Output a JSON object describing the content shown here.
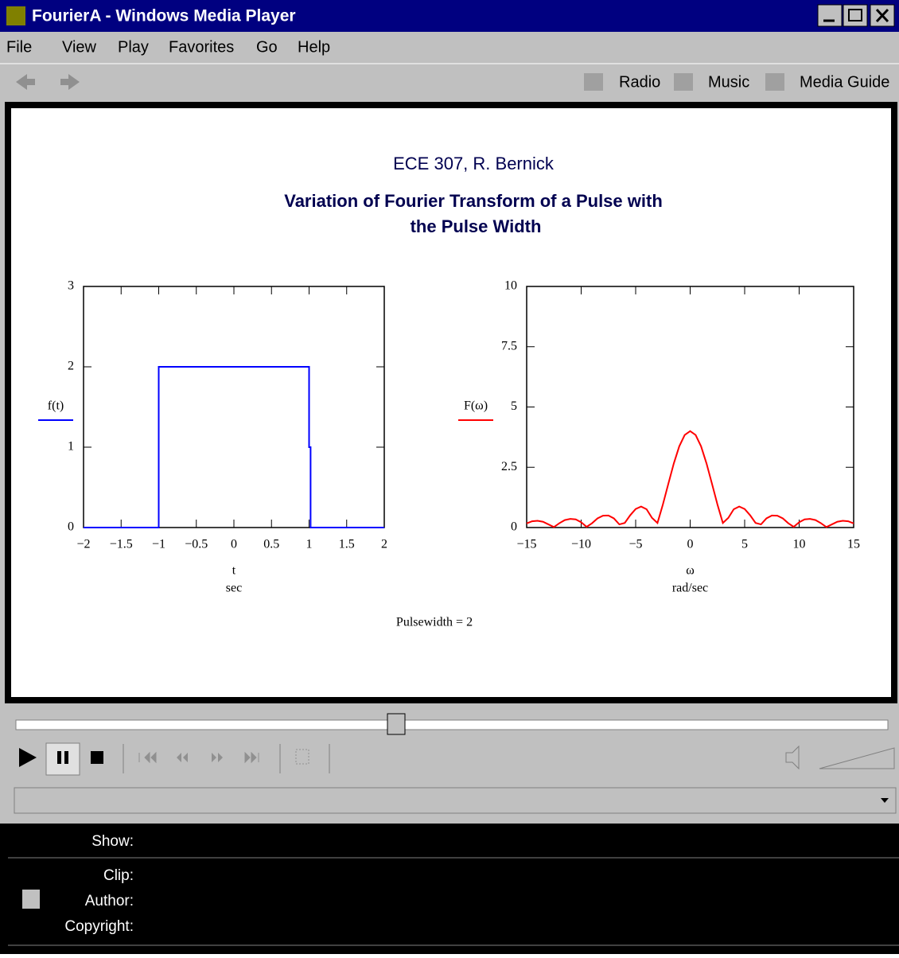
{
  "window": {
    "title": "FourierA - Windows Media Player"
  },
  "menu": [
    "File",
    "View",
    "Play",
    "Favorites",
    "Go",
    "Help"
  ],
  "toolbar": [
    "Radio",
    "Music",
    "Media Guide"
  ],
  "content": {
    "header": "ECE 307, R. Bernick",
    "title": [
      "Variation of Fourier Transform of a Pulse with",
      "the Pulse Width"
    ],
    "footer": "Pulsewidth = 2",
    "charts": [
      {
        "type": "line",
        "y_label": "f(t)",
        "x_label": "t",
        "x_unit": "sec",
        "xlim": [
          -2,
          2
        ],
        "ylim": [
          0,
          3
        ],
        "xticks": [
          {
            "value": -2,
            "label": "−2"
          },
          {
            "value": -1.5,
            "label": "−1.5"
          },
          {
            "value": -1,
            "label": "−1"
          },
          {
            "value": -0.5,
            "label": "−0.5"
          },
          0,
          0.5,
          1,
          1.5,
          2
        ],
        "yticks": [
          0,
          1,
          2,
          3
        ],
        "x": [
          -2,
          -1,
          -1,
          1,
          1,
          1.02,
          1.02,
          2
        ],
        "series": [
          {
            "color": "#0000ff",
            "values": [
              0,
              0,
              2,
              2,
              1,
              1,
              0,
              0
            ]
          }
        ]
      },
      {
        "type": "line",
        "y_label": "F(ω)",
        "x_label": "ω",
        "x_unit": "rad/sec",
        "xlim": [
          -15,
          15
        ],
        "ylim": [
          0,
          10
        ],
        "xticks": [
          {
            "value": -15,
            "label": "−15"
          },
          {
            "value": -10,
            "label": "−10"
          },
          {
            "value": -5,
            "label": "−5"
          },
          0,
          5,
          10,
          15
        ],
        "yticks": [
          0,
          2.5,
          5,
          7.5,
          10
        ],
        "x": [
          -15,
          -14.5,
          -14,
          -13.5,
          -13,
          -12.5,
          -12,
          -11.5,
          -11,
          -10.5,
          -10,
          -9.5,
          -9,
          -8.5,
          -8,
          -7.5,
          -7,
          -6.5,
          -6,
          -5.5,
          -5,
          -4.5,
          -4,
          -3.5,
          -3,
          -2.5,
          -2,
          -1.5,
          -1,
          -0.5,
          0,
          0.5,
          1,
          1.5,
          2,
          2.5,
          3,
          3.5,
          4,
          4.5,
          5,
          5.5,
          6,
          6.5,
          7,
          7.5,
          8,
          8.5,
          9,
          9.5,
          10,
          10.5,
          11,
          11.5,
          12,
          12.5,
          13,
          13.5,
          14,
          14.5,
          15
        ],
        "series": [
          {
            "color": "#ff0000",
            "values": [
              0.17,
              0.26,
              0.28,
              0.24,
              0.13,
              0.02,
              0.18,
              0.31,
              0.36,
              0.34,
              0.22,
              0.03,
              0.18,
              0.38,
              0.49,
              0.5,
              0.38,
              0.13,
              0.19,
              0.51,
              0.77,
              0.87,
              0.76,
              0.4,
              0.19,
              0.96,
              1.82,
              2.66,
              3.37,
              3.84,
              4,
              3.84,
              3.37,
              2.66,
              1.82,
              0.96,
              0.19,
              0.4,
              0.76,
              0.87,
              0.77,
              0.51,
              0.19,
              0.13,
              0.38,
              0.5,
              0.49,
              0.38,
              0.18,
              0.03,
              0.22,
              0.34,
              0.36,
              0.31,
              0.18,
              0.02,
              0.13,
              0.24,
              0.28,
              0.26,
              0.17
            ]
          }
        ]
      }
    ]
  },
  "info": {
    "show": "Show:",
    "clip": "Clip:",
    "author": "Author:",
    "copyright": "Copyright:"
  }
}
